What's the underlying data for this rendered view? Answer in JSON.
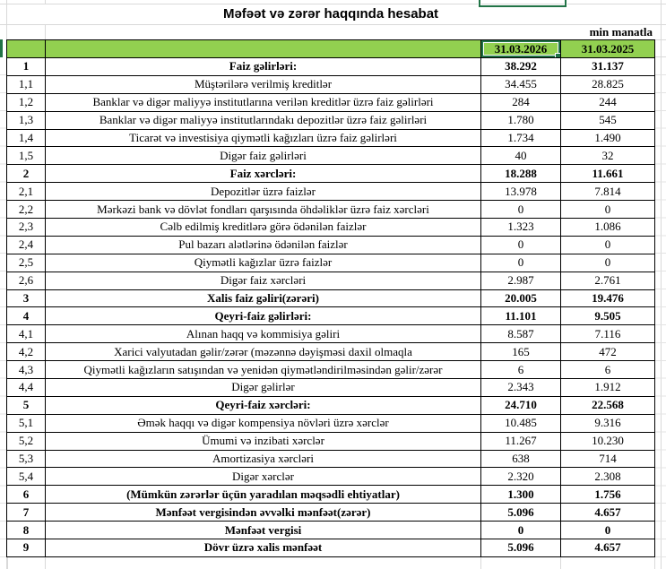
{
  "sheet": {
    "title": "Məfəət və zərər haqqında hesabat",
    "unit_note": "min manatla"
  },
  "table": {
    "column_headers": [
      "31.03.2026",
      "31.03.2025"
    ],
    "selected_cell": "31.03.2026",
    "rows": [
      {
        "no": "1",
        "label": "Faiz gəlirləri:",
        "v2026": "38.292",
        "v2025": "31.137",
        "bold": true
      },
      {
        "no": "1,1",
        "label": "Müştərilərə verilmiş kreditlər",
        "v2026": "34.455",
        "v2025": "28.825",
        "bold": false
      },
      {
        "no": "1,2",
        "label": "Banklar və digər maliyyə institutlarına verilən kreditlər üzrə faiz gəlirləri",
        "v2026": "284",
        "v2025": "244",
        "bold": false
      },
      {
        "no": "1,3",
        "label": "Banklar və digər maliyyə institutlarındakı depozitlər üzrə faiz gəlirləri",
        "v2026": "1.780",
        "v2025": "545",
        "bold": false
      },
      {
        "no": "1,4",
        "label": "Ticarət və investisiya qiymətli kağızları üzrə faiz gəlirləri",
        "v2026": "1.734",
        "v2025": "1.490",
        "bold": false
      },
      {
        "no": "1,5",
        "label": "Digər faiz gəlirləri",
        "v2026": "40",
        "v2025": "32",
        "bold": false
      },
      {
        "no": "2",
        "label": "Faiz xərcləri:",
        "v2026": "18.288",
        "v2025": "11.661",
        "bold": true
      },
      {
        "no": "2,1",
        "label": "Depozitlər üzrə faizlər",
        "v2026": "13.978",
        "v2025": "7.814",
        "bold": false
      },
      {
        "no": "2,2",
        "label": "Mərkəzi bank və dövlət fondları qarşısında öhdəliklər üzrə faiz xərcləri",
        "v2026": "0",
        "v2025": "0",
        "bold": false
      },
      {
        "no": "2,3",
        "label": "Cəlb edilmiş kreditlərə görə ödənilən faizlər",
        "v2026": "1.323",
        "v2025": "1.086",
        "bold": false
      },
      {
        "no": "2,4",
        "label": "Pul bazarı alətlərinə ödənilən faizlər",
        "v2026": "0",
        "v2025": "0",
        "bold": false
      },
      {
        "no": "2,5",
        "label": "Qiymətli kağızlar üzrə faizlər",
        "v2026": "0",
        "v2025": "0",
        "bold": false
      },
      {
        "no": "2,6",
        "label": "Digər faiz xərcləri",
        "v2026": "2.987",
        "v2025": "2.761",
        "bold": false
      },
      {
        "no": "3",
        "label": "Xalis faiz gəliri(zərəri)",
        "v2026": "20.005",
        "v2025": "19.476",
        "bold": true
      },
      {
        "no": "4",
        "label": "Qeyri-faiz gəlirləri:",
        "v2026": "11.101",
        "v2025": "9.505",
        "bold": true
      },
      {
        "no": "4,1",
        "label": "Alınan haqq və kommisiya gəliri",
        "v2026": "8.587",
        "v2025": "7.116",
        "bold": false
      },
      {
        "no": "4,2",
        "label": "Xarici valyutadan gəlir/zərər (məzənnə dəyişməsi daxil olmaqla",
        "v2026": "165",
        "v2025": "472",
        "bold": false
      },
      {
        "no": "4,3",
        "label": "Qiymətli kağızların satışından və yenidən qiymətləndirilməsindən gəlir/zərər",
        "v2026": "6",
        "v2025": "6",
        "bold": false
      },
      {
        "no": "4,4",
        "label": "Digər gəlirlər",
        "v2026": "2.343",
        "v2025": "1.912",
        "bold": false
      },
      {
        "no": "5",
        "label": "Qeyri-faiz xərcləri:",
        "v2026": "24.710",
        "v2025": "22.568",
        "bold": true
      },
      {
        "no": "5,1",
        "label": "Əmək haqqı və digər kompensiya növləri üzrə xərclər",
        "v2026": "10.485",
        "v2025": "9.316",
        "bold": false
      },
      {
        "no": "5,2",
        "label": "Ümumi və inzibati xərclər",
        "v2026": "11.267",
        "v2025": "10.230",
        "bold": false
      },
      {
        "no": "5,3",
        "label": "Amortizasiya xərcləri",
        "v2026": "638",
        "v2025": "714",
        "bold": false
      },
      {
        "no": "5,4",
        "label": "Digər xərclər",
        "v2026": "2.320",
        "v2025": "2.308",
        "bold": false
      },
      {
        "no": "6",
        "label": "(Mümkün zərərlər üçün yaradılan məqsədli ehtiyatlar)",
        "v2026": "1.300",
        "v2025": "1.756",
        "bold": true
      },
      {
        "no": "7",
        "label": "Mənfəət vergisindən əvvəlki mənfəət(zərər)",
        "v2026": "5.096",
        "v2025": "4.657",
        "bold": true
      },
      {
        "no": "8",
        "label": "Mənfəət vergisi",
        "v2026": "0",
        "v2025": "0",
        "bold": true
      },
      {
        "no": "9",
        "label": "Dövr üzrə xalis mənfəət",
        "v2026": "5.096",
        "v2025": "4.657",
        "bold": true
      }
    ]
  },
  "colors": {
    "header_fill": "#92D050",
    "selection_border": "#217346",
    "cell_border": "#000000",
    "gridline": "#d9d9d9"
  }
}
